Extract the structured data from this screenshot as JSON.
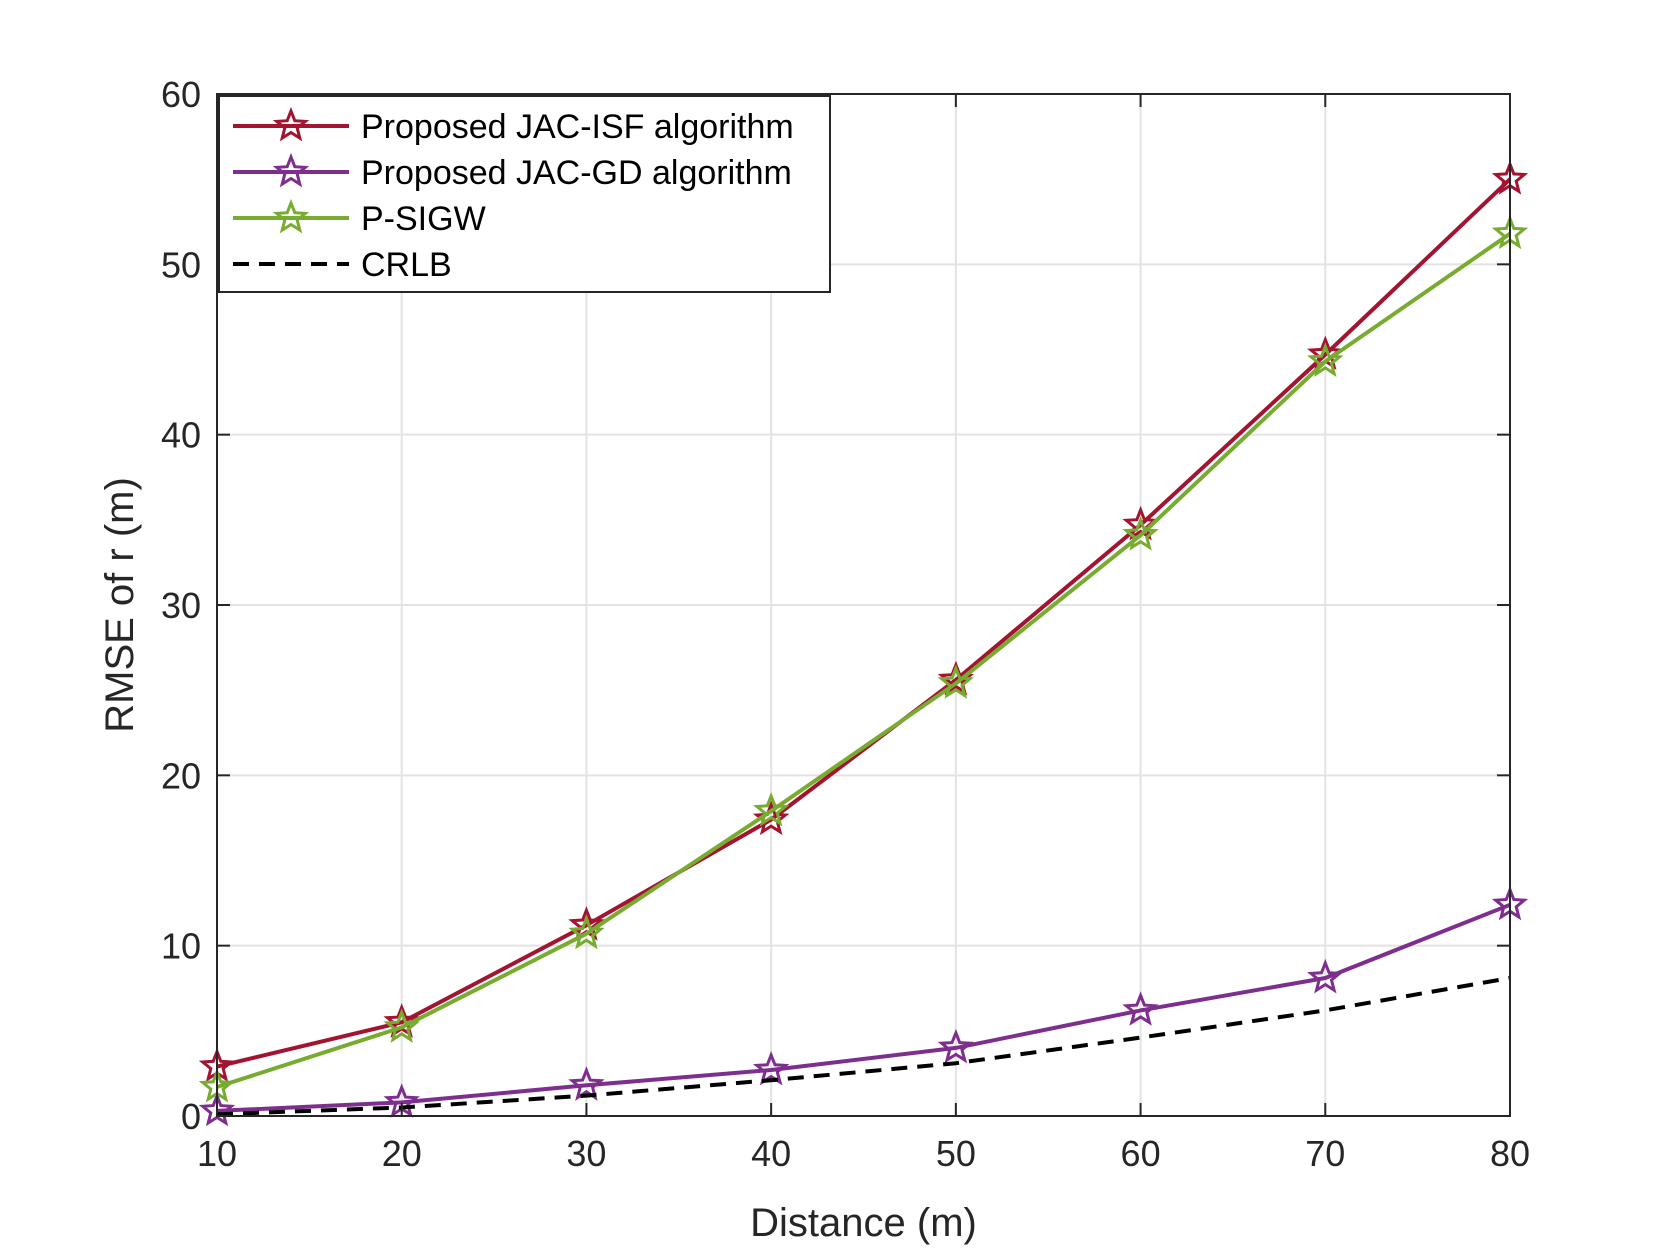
{
  "chart_data": {
    "type": "line",
    "title": "",
    "xlabel": "Distance (m)",
    "ylabel": "RMSE of r (m)",
    "xlim": [
      10,
      80
    ],
    "ylim": [
      0,
      60
    ],
    "xticks": [
      10,
      20,
      30,
      40,
      50,
      60,
      70,
      80
    ],
    "yticks": [
      0,
      10,
      20,
      30,
      40,
      50,
      60
    ],
    "grid": true,
    "legend_position": "top-left",
    "x": [
      10,
      20,
      30,
      40,
      50,
      60,
      70,
      80
    ],
    "series": [
      {
        "name": "Proposed JAC-ISF algorithm",
        "color": "#a2142f",
        "marker": "star",
        "dash": "solid",
        "values": [
          2.9,
          5.5,
          11.2,
          17.4,
          25.6,
          34.7,
          44.7,
          55.0
        ]
      },
      {
        "name": "Proposed JAC-GD algorithm",
        "color": "#7e2f8e",
        "marker": "star",
        "dash": "solid",
        "values": [
          0.3,
          0.8,
          1.8,
          2.7,
          4.0,
          6.2,
          8.1,
          12.4
        ]
      },
      {
        "name": "P-SIGW",
        "color": "#77ac30",
        "marker": "star",
        "dash": "solid",
        "values": [
          1.7,
          5.2,
          10.7,
          17.9,
          25.4,
          34.1,
          44.3,
          51.8
        ]
      },
      {
        "name": "CRLB",
        "color": "#000000",
        "marker": "none",
        "dash": "dashed",
        "values": [
          0.1,
          0.5,
          1.2,
          2.1,
          3.1,
          4.6,
          6.2,
          8.1
        ]
      }
    ]
  }
}
